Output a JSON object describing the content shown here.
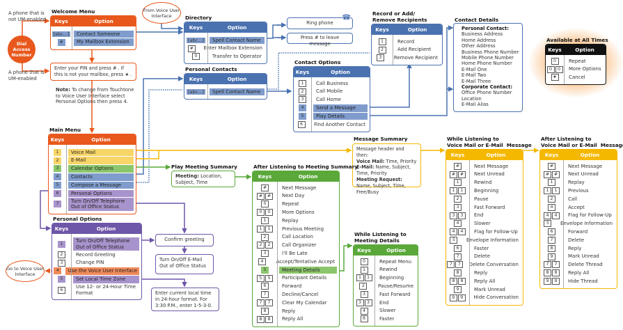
{
  "colors": {
    "orange": "#e8581c",
    "blue": "#4a72b0",
    "green": "#5aa83a",
    "yellow": "#f5b800",
    "purple": "#6e56a8",
    "black": "#111111"
  },
  "labels": {
    "phone_not_um": "A phone that is not UM-enabled",
    "phone_um": "A phone that is UM-enabled",
    "dial_access": "Dial Access Number",
    "from_vui": "From Voice User Interface",
    "go_to_vui": "Go to Voice User Interface",
    "pin_prompt": "Enter your PIN and press # . If this is not your mailbox, press ★ .",
    "note_label": "Note:",
    "note_text": "To change from Touchtone to Voice User Interface select Personal Options then press 4.",
    "ring_phone": "Ring phone",
    "press_hash": "Press # to leave message",
    "confirm_greeting": "Confirm greeting",
    "email_oof": "Turn On/Off E-Mail Out of Office Status",
    "enter_time": "Enter current local time in 24-hour format. For 3:30 P.M., enter 1-5-3-0.",
    "play_meeting_summary_title": "Play Meeting Summary",
    "meeting_label": "Meeting:",
    "meeting_text": "Location, Subject, Time",
    "message_summary_title": "Message Summary",
    "message_summary": {
      "intro": "Message header and then:",
      "vm_label": "Voice Mail:",
      "vm_text": "Time, Priority",
      "em_label": "E-Mail:",
      "em_text": "Name, Subject, Time, Priority",
      "mr_label": "Meeting Request:",
      "mr_text": "Name, Subject, Time, Free/Busy"
    },
    "contact_details_title": "Contact Details",
    "personal_contact": "Personal Contact:",
    "personal_contact_items": [
      "Business Address",
      "Home Address",
      "Other Address",
      "Business Phone Number",
      "Mobile Phone Number",
      "Home Phone Number",
      "E-Mail One",
      "E-Mail Two",
      "E-Mail Three"
    ],
    "corporate_contact": "Corporate Contact:",
    "corporate_contact_items": [
      "Office Phone Number",
      "Location",
      "E-Mail Alias"
    ]
  },
  "menus": {
    "welcome": {
      "title": "Welcome Menu",
      "keys_header": "Keys",
      "option_header": "Option",
      "color": "orange",
      "rows": [
        {
          "keys": [
            "[abc...]"
          ],
          "option": "Contact Someone",
          "hl": "#7f9ccc"
        },
        {
          "keys": [
            "#"
          ],
          "option": "My Mailbox Extension",
          "hl": "#7f9ccc"
        }
      ]
    },
    "main": {
      "title": "Main Menu",
      "keys_header": "Keys",
      "option_header": "Option",
      "color": "orange",
      "rows": [
        {
          "keys": [
            "1"
          ],
          "option": "Voice Mail",
          "hl": "#f8d568"
        },
        {
          "keys": [
            "2"
          ],
          "option": "E-Mail",
          "hl": "#f8d568"
        },
        {
          "keys": [
            "3"
          ],
          "option": "Calendar Options",
          "hl": "#8cc66c"
        },
        {
          "keys": [
            "4"
          ],
          "option": "Contacts",
          "hl": "#7f9ccc"
        },
        {
          "keys": [
            "5"
          ],
          "option": "Compose a Message",
          "hl": "#7f9ccc"
        },
        {
          "keys": [
            "6"
          ],
          "option": "Personal Options",
          "hl": "#a894cc"
        },
        {
          "keys": [
            "7"
          ],
          "option": "Turn On/Off Telephone\nOut of Office Status",
          "hl": "#a894cc"
        }
      ]
    },
    "personal": {
      "title": "Personal Options",
      "keys_header": "Keys",
      "option_header": "Option",
      "color": "purple",
      "rows": [
        {
          "keys": [
            "1"
          ],
          "option": "Turn On/Off Telephone\nOut of Office Status",
          "hl": "#a894cc"
        },
        {
          "keys": [
            "2"
          ],
          "option": "Record Greeting"
        },
        {
          "keys": [
            "3"
          ],
          "option": "Change PIN"
        },
        {
          "keys": [
            "4"
          ],
          "option": "Use the Voice User Interface",
          "hl": "#f08a5a"
        },
        {
          "keys": [
            "5"
          ],
          "option": "Set Local Time Zone",
          "hl": "#a894cc"
        },
        {
          "keys": [
            "6"
          ],
          "option": "Use 12- or 24-Hour Time\nFormat"
        }
      ]
    },
    "directory": {
      "title": "Directory",
      "keys_header": "Keys",
      "option_header": "Option",
      "color": "blue",
      "rows": [
        {
          "keys": [
            "[abc...]"
          ],
          "option": "Spell Contact Name",
          "hl": "#7f9ccc"
        },
        {
          "keys": [
            "#"
          ],
          "option": "Enter Mailbox Extension"
        },
        {
          "keys": [
            "0"
          ],
          "option": "Transfer to Operator"
        }
      ]
    },
    "pcontacts": {
      "title": "Personal Contacts",
      "keys_header": "Keys",
      "option_header": "Option",
      "color": "blue",
      "rows": [
        {
          "keys": [
            "[abc...]"
          ],
          "option": "Spell Contact Name",
          "hl": "#7f9ccc"
        }
      ]
    },
    "record": {
      "title": "Record or Add/\nRemove Recipients",
      "keys_header": "Keys",
      "option_header": "Option",
      "color": "blue",
      "rows": [
        {
          "keys": [
            "1"
          ],
          "option": "Record"
        },
        {
          "keys": [
            "2"
          ],
          "option": "Add Recipient"
        },
        {
          "keys": [
            "3"
          ],
          "option": "Remove Recipient"
        }
      ]
    },
    "coptions": {
      "title": "Contact Options",
      "keys_header": "Keys",
      "option_header": "Option",
      "color": "blue",
      "rows": [
        {
          "keys": [
            "1"
          ],
          "option": "Call Business"
        },
        {
          "keys": [
            "2"
          ],
          "option": "Call Mobile"
        },
        {
          "keys": [
            "3"
          ],
          "option": "Call Home"
        },
        {
          "keys": [
            "4"
          ],
          "option": "Send a Message",
          "hl": "#7f9ccc"
        },
        {
          "keys": [
            "5"
          ],
          "option": "Play Details",
          "hl": "#7f9ccc"
        },
        {
          "keys": [
            "6"
          ],
          "option": "Find Another Contact"
        }
      ]
    },
    "always": {
      "title": "Available at All Times",
      "keys_header": "Keys",
      "option_header": "Option",
      "color": "black",
      "rows": [
        {
          "keys": [
            "0"
          ],
          "option": "Repeat"
        },
        {
          "keys": [
            "0",
            "0"
          ],
          "option": "More Options"
        },
        {
          "keys": [
            "★"
          ],
          "option": "Cancel"
        }
      ]
    },
    "after_meeting": {
      "title": "After Listening to Meeting Summary",
      "keys_header": "Keys",
      "option_header": "Option",
      "color": "green",
      "rows": [
        {
          "keys": [
            "#"
          ],
          "option": "Next Message"
        },
        {
          "keys": [
            "#",
            "#"
          ],
          "option": "Next Day"
        },
        {
          "keys": [
            "0"
          ],
          "option": "Repeat"
        },
        {
          "keys": [
            "0",
            "0"
          ],
          "option": "More Options"
        },
        {
          "keys": [
            "1"
          ],
          "option": "Replay"
        },
        {
          "keys": [
            "1",
            "1"
          ],
          "option": "Previous Meeting"
        },
        {
          "keys": [
            "2"
          ],
          "option": "Call Location"
        },
        {
          "keys": [
            "2",
            "2"
          ],
          "option": "Call Organizer"
        },
        {
          "keys": [
            "3"
          ],
          "option": "I'll Be Late"
        },
        {
          "keys": [
            "4"
          ],
          "option": "Accept/Tentative Accept"
        },
        {
          "keys": [
            "5"
          ],
          "option": "Meeting Details",
          "hl": "#8cc66c"
        },
        {
          "keys": [
            "5",
            "5"
          ],
          "option": "Participant Details"
        },
        {
          "keys": [
            "6"
          ],
          "option": "Forward"
        },
        {
          "keys": [
            "7"
          ],
          "option": "Decline/Cancel"
        },
        {
          "keys": [
            "7",
            "7"
          ],
          "option": "Clear My Calendar"
        },
        {
          "keys": [
            "8"
          ],
          "option": "Reply"
        },
        {
          "keys": [
            "8",
            "8"
          ],
          "option": "Reply All"
        }
      ]
    },
    "meeting_details": {
      "title": "While Listening to\nMeeting Details",
      "keys_header": "Keys",
      "option_header": "Option",
      "color": "green",
      "rows": [
        {
          "keys": [
            "0"
          ],
          "option": "Repeat Menu"
        },
        {
          "keys": [
            "1"
          ],
          "option": "Rewind"
        },
        {
          "keys": [
            "1",
            "1"
          ],
          "option": "Beginning"
        },
        {
          "keys": [
            "2"
          ],
          "option": "Pause/Resume"
        },
        {
          "keys": [
            "3"
          ],
          "option": "Fast Forward"
        },
        {
          "keys": [
            "3",
            "3"
          ],
          "option": "End"
        },
        {
          "keys": [
            "4"
          ],
          "option": "Slower"
        },
        {
          "keys": [
            "6"
          ],
          "option": "Faster"
        }
      ]
    },
    "while_vm": {
      "title": "While Listening to\nVoice Mail or E-Mail  Message",
      "keys_header": "Keys",
      "option_header": "Option",
      "color": "yellow",
      "rows": [
        {
          "keys": [
            "#"
          ],
          "option": "Next Message"
        },
        {
          "keys": [
            "#",
            "#"
          ],
          "option": "Next Unread"
        },
        {
          "keys": [
            "1"
          ],
          "option": "Rewind"
        },
        {
          "keys": [
            "1",
            "1"
          ],
          "option": "Beginning"
        },
        {
          "keys": [
            "2"
          ],
          "option": "Pause"
        },
        {
          "keys": [
            "3"
          ],
          "option": "Fast Forward"
        },
        {
          "keys": [
            "3",
            "3"
          ],
          "option": "End"
        },
        {
          "keys": [
            "4"
          ],
          "option": "Slower"
        },
        {
          "keys": [
            "4",
            "4"
          ],
          "option": "Flag for Follow-Up"
        },
        {
          "keys": [
            "5"
          ],
          "option": "Envelope Information"
        },
        {
          "keys": [
            "6"
          ],
          "option": "Faster"
        },
        {
          "keys": [
            "7"
          ],
          "option": "Delete"
        },
        {
          "keys": [
            "7",
            "7"
          ],
          "option": "Delete Conversation"
        },
        {
          "keys": [
            "8"
          ],
          "option": "Reply"
        },
        {
          "keys": [
            "8",
            "8"
          ],
          "option": "Reply All"
        },
        {
          "keys": [
            "9"
          ],
          "option": "Mark Unread"
        },
        {
          "keys": [
            "9",
            "9"
          ],
          "option": "Hide Conversation"
        }
      ]
    },
    "after_vm": {
      "title": "After Listening to\nVoice Mail or E-Mail  Message",
      "keys_header": "Keys",
      "option_header": "Option",
      "color": "yellow",
      "rows": [
        {
          "keys": [
            "#"
          ],
          "option": "Next Message"
        },
        {
          "keys": [
            "#",
            "#"
          ],
          "option": "Next Unread"
        },
        {
          "keys": [
            "1"
          ],
          "option": "Replay"
        },
        {
          "keys": [
            "1",
            "1"
          ],
          "option": "Previous"
        },
        {
          "keys": [
            "2"
          ],
          "option": "Call"
        },
        {
          "keys": [
            "4"
          ],
          "option": "Accept"
        },
        {
          "keys": [
            "4",
            "4"
          ],
          "option": "Flag for Follow-Up"
        },
        {
          "keys": [
            "5"
          ],
          "option": "Envelope Information"
        },
        {
          "keys": [
            "6"
          ],
          "option": "Forward"
        },
        {
          "keys": [
            "7"
          ],
          "option": "Delete"
        },
        {
          "keys": [
            "8"
          ],
          "option": "Reply"
        },
        {
          "keys": [
            "9"
          ],
          "option": "Mark Unread"
        },
        {
          "keys": [
            "7",
            "7"
          ],
          "option": "Delete Thread"
        },
        {
          "keys": [
            "8",
            "8"
          ],
          "option": "Reply All"
        },
        {
          "keys": [
            "9",
            "9"
          ],
          "option": "Hide Thread"
        }
      ]
    }
  }
}
